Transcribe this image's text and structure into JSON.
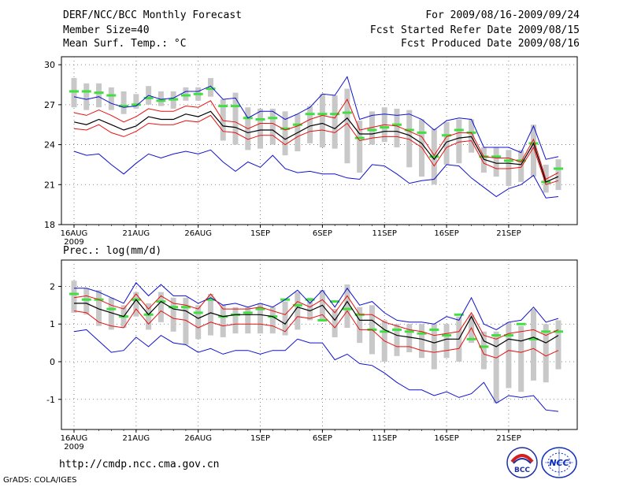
{
  "header": {
    "title": "DERF/NCC/BCC Monthly Forecast",
    "member_size": "Member Size=40",
    "variable": "Mean Surf. Temp.: °C",
    "forecast_period": "For 2009/08/16-2009/09/24",
    "start_ref": "Fcst Started Refer Date 2009/08/15",
    "produced": "Fcst Produced Date 2009/08/16"
  },
  "footer": {
    "url": "http://cmdp.ncc.cma.gov.cn",
    "grads": "GrADS: COLA/IGES",
    "logo1_text": "BCC",
    "logo2_text": "NCC"
  },
  "colors": {
    "mean": "#000000",
    "spread": "#e81010",
    "extreme": "#1010d0",
    "box": "#c8c8c8",
    "median": "#40e040"
  },
  "chart_data": [
    {
      "type": "line",
      "title": "Mean Surf. Temp.: °C",
      "x": [
        1,
        2,
        3,
        4,
        5,
        6,
        7,
        8,
        9,
        10,
        11,
        12,
        13,
        14,
        15,
        16,
        17,
        18,
        19,
        20,
        21,
        22,
        23,
        24,
        25,
        26,
        27,
        28,
        29,
        30,
        31,
        32,
        33,
        34,
        35,
        36,
        37,
        38,
        39,
        40
      ],
      "xtick_positions": [
        1,
        6,
        11,
        16,
        21,
        26,
        31,
        36
      ],
      "xtick_labels": [
        "16AUG",
        "21AUG",
        "26AUG",
        "1SEP",
        "6SEP",
        "11SEP",
        "16SEP",
        "21SEP"
      ],
      "xtick_sublabel": "2009",
      "ylim": [
        18,
        30.6
      ],
      "yticks": [
        18,
        21,
        24,
        27,
        30
      ],
      "series": [
        {
          "name": "max",
          "values": [
            27.6,
            27.4,
            27.6,
            27.1,
            26.8,
            26.9,
            27.7,
            27.4,
            27.5,
            28.0,
            28.0,
            28.4,
            27.4,
            27.5,
            26.0,
            26.5,
            26.5,
            25.9,
            26.3,
            26.8,
            27.8,
            27.7,
            29.1,
            25.9,
            26.2,
            26.3,
            26.2,
            26.3,
            25.9,
            25.1,
            25.8,
            26.0,
            25.9,
            23.8,
            23.8,
            23.8,
            23.4,
            25.4,
            22.9,
            23.1
          ]
        },
        {
          "name": "upper",
          "values": [
            26.4,
            26.2,
            26.6,
            26.2,
            25.7,
            26.1,
            26.7,
            26.5,
            26.5,
            26.9,
            26.8,
            27.3,
            25.8,
            25.7,
            25.2,
            25.6,
            25.6,
            25.1,
            25.4,
            25.9,
            26.2,
            26.0,
            27.4,
            25.1,
            25.3,
            25.5,
            25.4,
            25.0,
            24.6,
            23.2,
            24.6,
            24.9,
            24.9,
            23.1,
            23.0,
            23.0,
            22.7,
            24.4,
            21.4,
            21.9
          ]
        },
        {
          "name": "mean",
          "values": [
            25.7,
            25.5,
            25.9,
            25.5,
            25.1,
            25.4,
            26.1,
            25.9,
            25.9,
            26.3,
            26.1,
            26.5,
            25.4,
            25.3,
            24.9,
            25.1,
            25.1,
            24.4,
            24.9,
            25.4,
            25.6,
            25.2,
            26.0,
            24.8,
            24.8,
            25.0,
            25.0,
            24.7,
            24.1,
            22.9,
            24.2,
            24.5,
            24.6,
            22.9,
            22.6,
            22.6,
            22.5,
            24.1,
            21.2,
            21.6
          ]
        },
        {
          "name": "lower",
          "values": [
            25.2,
            25.1,
            25.5,
            24.9,
            24.6,
            25.0,
            25.6,
            25.5,
            25.5,
            25.8,
            25.7,
            26.2,
            25.0,
            24.9,
            24.4,
            24.7,
            24.7,
            24.0,
            24.6,
            25.0,
            25.1,
            24.9,
            25.6,
            24.3,
            24.5,
            24.6,
            24.6,
            24.4,
            23.8,
            22.4,
            23.8,
            24.2,
            24.3,
            22.6,
            22.2,
            22.2,
            22.3,
            23.8,
            21.0,
            21.3
          ]
        },
        {
          "name": "min",
          "values": [
            23.5,
            23.2,
            23.3,
            22.5,
            21.8,
            22.6,
            23.3,
            23.0,
            23.3,
            23.5,
            23.3,
            23.6,
            22.7,
            22.0,
            22.7,
            22.3,
            23.2,
            22.2,
            21.9,
            22.0,
            21.8,
            21.8,
            21.5,
            21.4,
            22.5,
            22.4,
            21.8,
            21.1,
            21.3,
            21.4,
            22.5,
            22.4,
            21.5,
            20.8,
            20.1,
            20.7,
            21.0,
            21.7,
            20.0,
            20.1
          ]
        },
        {
          "name": "median",
          "values": [
            28.0,
            28.0,
            27.9,
            27.7,
            26.9,
            27.0,
            27.5,
            27.3,
            27.4,
            27.7,
            27.8,
            28.2,
            26.9,
            26.9,
            26.0,
            25.9,
            26.0,
            25.2,
            25.5,
            26.3,
            26.3,
            26.3,
            26.4,
            24.5,
            25.1,
            25.3,
            25.5,
            25.1,
            24.9,
            23.1,
            24.7,
            25.1,
            24.9,
            23.1,
            23.1,
            22.8,
            22.8,
            24.1,
            21.2,
            22.2
          ]
        },
        {
          "name": "box_high",
          "values": [
            29.0,
            28.6,
            28.6,
            28.3,
            28.0,
            27.8,
            28.4,
            28.0,
            28.0,
            28.3,
            28.3,
            29.0,
            27.4,
            27.9,
            26.8,
            26.7,
            26.7,
            26.5,
            26.3,
            26.9,
            27.8,
            27.7,
            28.2,
            25.8,
            26.5,
            26.8,
            26.7,
            26.6,
            25.9,
            25.2,
            25.7,
            25.9,
            25.9,
            23.8,
            23.8,
            23.6,
            23.6,
            25.5,
            22.5,
            22.9
          ]
        },
        {
          "name": "box_low",
          "values": [
            26.8,
            26.6,
            26.8,
            26.6,
            26.3,
            26.7,
            27.0,
            26.9,
            26.7,
            27.3,
            27.3,
            27.6,
            24.3,
            24.0,
            23.6,
            23.7,
            24.0,
            23.2,
            23.5,
            24.1,
            23.8,
            23.7,
            22.6,
            21.9,
            24.0,
            24.2,
            23.8,
            22.3,
            21.6,
            21.0,
            22.5,
            22.6,
            23.4,
            21.9,
            21.6,
            20.9,
            21.2,
            21.6,
            20.4,
            20.6
          ]
        }
      ]
    },
    {
      "type": "line",
      "title": "Prec.: log(mm/d)",
      "x": [
        1,
        2,
        3,
        4,
        5,
        6,
        7,
        8,
        9,
        10,
        11,
        12,
        13,
        14,
        15,
        16,
        17,
        18,
        19,
        20,
        21,
        22,
        23,
        24,
        25,
        26,
        27,
        28,
        29,
        30,
        31,
        32,
        33,
        34,
        35,
        36,
        37,
        38,
        39,
        40
      ],
      "xtick_positions": [
        1,
        6,
        11,
        16,
        21,
        26,
        31,
        36
      ],
      "xtick_labels": [
        "16AUG",
        "21AUG",
        "26AUG",
        "1SEP",
        "6SEP",
        "11SEP",
        "16SEP",
        "21SEP"
      ],
      "xtick_sublabel": "2009",
      "ylim": [
        -1.8,
        2.7
      ],
      "yticks": [
        -1,
        0,
        1,
        2
      ],
      "series": [
        {
          "name": "max",
          "values": [
            1.95,
            1.95,
            1.85,
            1.7,
            1.55,
            2.1,
            1.75,
            2.05,
            1.75,
            1.75,
            1.55,
            1.7,
            1.5,
            1.55,
            1.45,
            1.55,
            1.45,
            1.65,
            1.9,
            1.55,
            1.9,
            1.45,
            1.95,
            1.5,
            1.6,
            1.3,
            1.1,
            1.05,
            1.05,
            1.0,
            1.2,
            1.1,
            1.7,
            1.0,
            0.85,
            1.05,
            1.1,
            1.45,
            1.05,
            1.15
          ]
        },
        {
          "name": "upper",
          "values": [
            1.7,
            1.75,
            1.65,
            1.5,
            1.4,
            1.8,
            1.4,
            1.75,
            1.55,
            1.5,
            1.4,
            1.8,
            1.4,
            1.4,
            1.4,
            1.45,
            1.35,
            1.25,
            1.6,
            1.45,
            1.65,
            1.3,
            1.75,
            1.25,
            1.25,
            1.05,
            0.95,
            0.85,
            0.8,
            0.7,
            0.75,
            0.8,
            1.3,
            0.7,
            0.6,
            0.75,
            0.8,
            0.85,
            0.7,
            0.85
          ]
        },
        {
          "name": "mean",
          "values": [
            1.55,
            1.55,
            1.4,
            1.3,
            1.2,
            1.65,
            1.25,
            1.6,
            1.4,
            1.35,
            1.15,
            1.3,
            1.2,
            1.25,
            1.25,
            1.25,
            1.2,
            1.0,
            1.45,
            1.35,
            1.5,
            1.1,
            1.6,
            1.1,
            1.1,
            0.85,
            0.7,
            0.65,
            0.6,
            0.5,
            0.6,
            0.6,
            1.2,
            0.55,
            0.4,
            0.6,
            0.55,
            0.65,
            0.5,
            0.7
          ]
        },
        {
          "name": "lower",
          "values": [
            1.35,
            1.3,
            1.05,
            0.95,
            0.9,
            1.4,
            1.0,
            1.35,
            1.15,
            1.1,
            0.9,
            1.05,
            0.95,
            1.0,
            1.0,
            1.0,
            0.95,
            0.8,
            1.2,
            1.15,
            1.25,
            0.9,
            1.35,
            0.85,
            0.85,
            0.55,
            0.4,
            0.4,
            0.3,
            0.25,
            0.3,
            0.35,
            0.9,
            0.2,
            0.1,
            0.3,
            0.25,
            0.35,
            0.15,
            0.3
          ]
        },
        {
          "name": "min",
          "values": [
            0.8,
            0.85,
            0.55,
            0.25,
            0.3,
            0.65,
            0.4,
            0.7,
            0.5,
            0.45,
            0.25,
            0.35,
            0.2,
            0.3,
            0.3,
            0.2,
            0.3,
            0.3,
            0.6,
            0.5,
            0.5,
            0.05,
            0.2,
            -0.05,
            -0.1,
            -0.3,
            -0.55,
            -0.75,
            -0.75,
            -0.9,
            -0.8,
            -0.95,
            -0.85,
            -0.55,
            -1.1,
            -0.9,
            -0.95,
            -0.9,
            -1.28,
            -1.32
          ]
        },
        {
          "name": "median",
          "values": [
            1.8,
            1.65,
            1.65,
            1.4,
            1.2,
            1.65,
            1.25,
            1.6,
            1.45,
            1.45,
            1.3,
            1.65,
            1.2,
            1.25,
            1.3,
            1.4,
            1.2,
            1.65,
            1.5,
            1.65,
            1.1,
            1.6,
            1.4,
            1.25,
            0.85,
            0.8,
            0.85,
            0.8,
            0.75,
            0.85,
            0.7,
            1.25,
            0.6,
            0.4,
            0.7,
            0.7,
            1.0,
            0.6,
            0.8,
            0.8
          ]
        },
        {
          "name": "box_high",
          "values": [
            2.15,
            1.95,
            1.9,
            1.7,
            1.5,
            1.85,
            1.55,
            1.85,
            1.7,
            1.7,
            1.5,
            1.8,
            1.5,
            1.45,
            1.45,
            1.55,
            1.45,
            1.6,
            1.85,
            1.7,
            1.9,
            1.4,
            2.05,
            1.45,
            1.5,
            1.1,
            1.0,
            1.0,
            1.0,
            1.0,
            1.0,
            1.2,
            1.25,
            0.8,
            0.8,
            1.05,
            0.95,
            1.4,
            1.0,
            1.1
          ]
        },
        {
          "name": "box_low",
          "values": [
            1.3,
            1.25,
            0.95,
            0.85,
            0.9,
            1.2,
            0.85,
            1.05,
            0.8,
            0.45,
            0.6,
            0.7,
            0.65,
            0.75,
            0.75,
            0.75,
            0.75,
            0.7,
            0.85,
            1.1,
            1.1,
            0.65,
            0.9,
            0.5,
            0.2,
            0.0,
            0.15,
            0.25,
            0.1,
            -0.2,
            0.1,
            0.0,
            0.5,
            -0.2,
            -1.1,
            -0.7,
            -0.8,
            -0.5,
            -0.55,
            -0.2
          ]
        }
      ]
    }
  ]
}
